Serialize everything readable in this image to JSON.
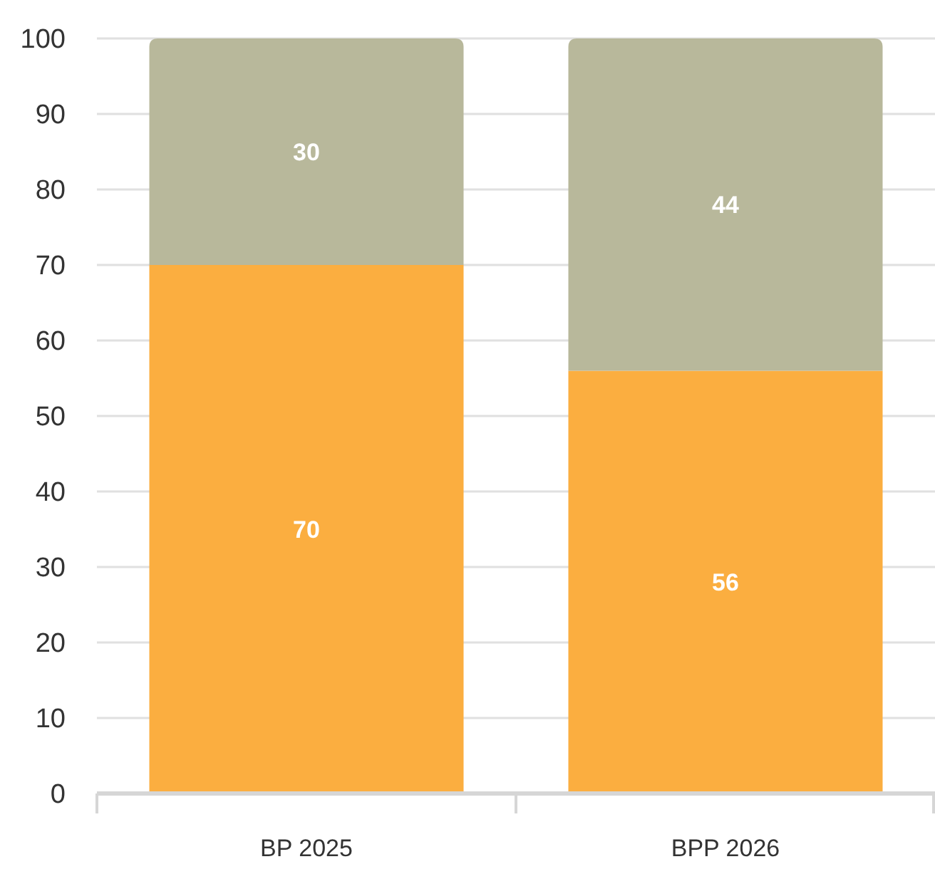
{
  "chart_data": {
    "type": "bar",
    "stacked": true,
    "categories": [
      "BP 2025",
      "BPP 2026"
    ],
    "series": [
      {
        "color": "#fbae40",
        "values": [
          70,
          56
        ]
      },
      {
        "color": "#b8b89b",
        "values": [
          30,
          44
        ]
      }
    ],
    "ylim": [
      0,
      100
    ],
    "yticks": [
      0,
      10,
      20,
      30,
      40,
      50,
      60,
      70,
      80,
      90,
      100
    ],
    "grid": "y",
    "data_labels": true
  }
}
